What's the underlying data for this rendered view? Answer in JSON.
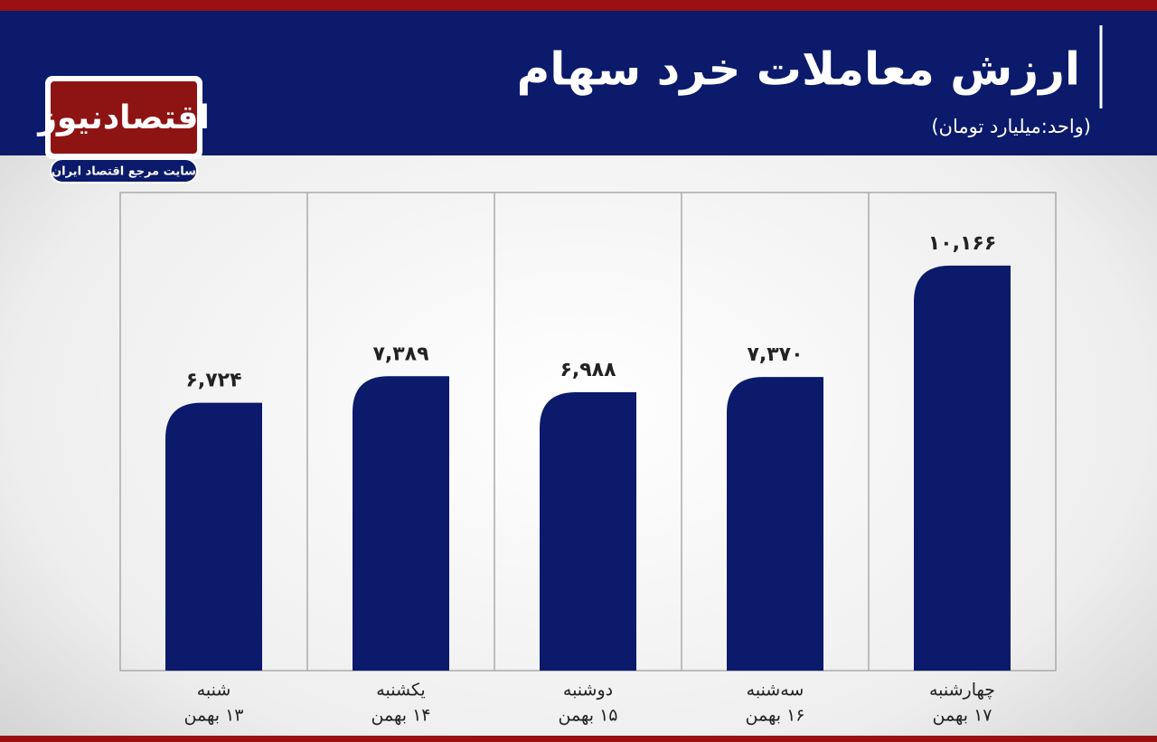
{
  "logo": {
    "name": "اقتصادنیوز",
    "tagline": "سایت مرجع اقتصاد ایران"
  },
  "chart_data": {
    "type": "bar",
    "title": "ارزش معاملات خرد سهام",
    "subtitle": "(واحد:میلیارد تومان)",
    "categories": [
      [
        "شنبه",
        "۱۳ بهمن"
      ],
      [
        "یکشنبه",
        "۱۴ بهمن"
      ],
      [
        "دوشنبه",
        "۱۵ بهمن"
      ],
      [
        "سه‌شنبه",
        "۱۶ بهمن"
      ],
      [
        "چهارشنبه",
        "۱۷ بهمن"
      ]
    ],
    "values": [
      6724,
      7389,
      6988,
      7370,
      10166
    ],
    "value_labels": [
      "۶,۷۲۴",
      "۷,۳۸۹",
      "۶,۹۸۸",
      "۷,۳۷۰",
      "۱۰,۱۶۶"
    ],
    "color": "#0b1a6b",
    "ylim": [
      0,
      12000
    ]
  }
}
